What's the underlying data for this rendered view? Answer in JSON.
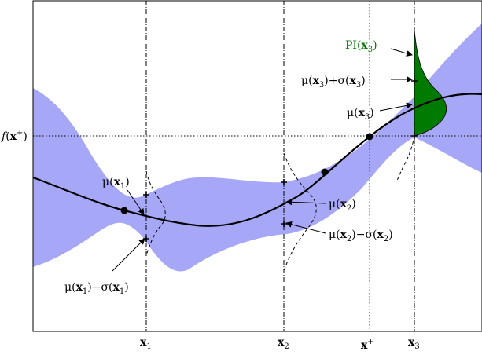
{
  "colors": {
    "band": "#a7a7f7",
    "mean": "#000000",
    "pi_fill": "#007a00",
    "pi_label": "#0a7a0a",
    "fplus_line": "#000000",
    "xplus_line": "#2222cc",
    "x_lines": "#000000"
  },
  "axis": {
    "fplus": {
      "f": "f",
      "x": "x",
      "sup": "+"
    },
    "x1": {
      "x": "x",
      "sub": "1"
    },
    "x2": {
      "x": "x",
      "sub": "2"
    },
    "xplus": {
      "x": "x",
      "sup": "+"
    },
    "x3": {
      "x": "x",
      "sub": "3"
    }
  },
  "annotations": {
    "pi_x3": {
      "pre": "PI(",
      "x": "x",
      "sub": "3",
      "post": ")"
    },
    "mu_plus_sigma_x3": {
      "mu": "μ(",
      "x1": "x",
      "sub1": "3",
      "mid": ")+σ(",
      "x2": "x",
      "sub2": "3",
      "post": ")"
    },
    "mu_x3": {
      "mu": "μ(",
      "x": "x",
      "sub": "3",
      "post": ")"
    },
    "mu_x1": {
      "mu": "μ(",
      "x": "x",
      "sub": "1",
      "post": ")"
    },
    "mu_x2": {
      "mu": "μ(",
      "x": "x",
      "sub": "2",
      "post": ")"
    },
    "mu_minus_sigma_x2": {
      "mu": "μ(",
      "x1": "x",
      "sub1": "2",
      "mid": ")−σ(",
      "x2": "x",
      "sub2": "2",
      "post": ")"
    },
    "mu_minus_sigma_x1": {
      "mu": "μ(",
      "x1": "x",
      "sub1": "1",
      "mid": ")−σ(",
      "x2": "x",
      "sub2": "1",
      "post": ")"
    }
  }
}
